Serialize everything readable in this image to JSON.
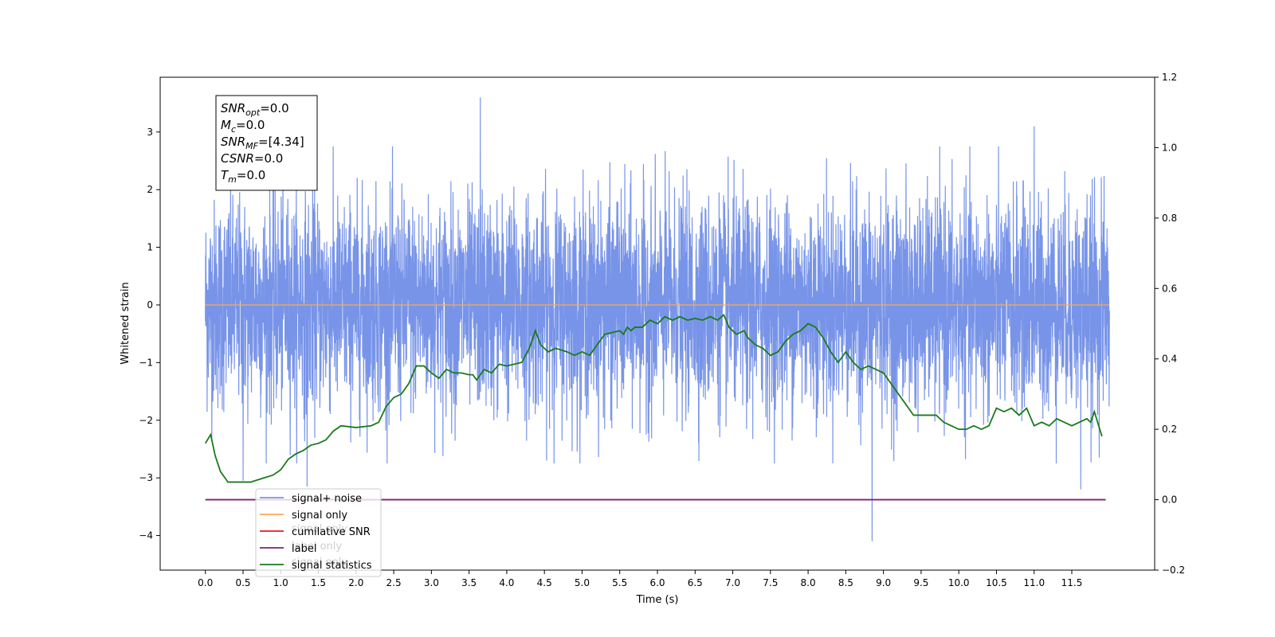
{
  "chart_data": {
    "type": "line",
    "xlabel": "Time (s)",
    "ylabel": "Whitened strain",
    "xlim": [
      -0.6,
      12.6
    ],
    "ylim": [
      -4.6,
      3.95
    ],
    "y2lim": [
      -0.2,
      1.2
    ],
    "x_ticks": [
      0.0,
      0.5,
      1.0,
      1.5,
      2.0,
      2.5,
      3.0,
      3.5,
      4.0,
      4.5,
      5.0,
      5.5,
      6.0,
      6.5,
      7.0,
      7.5,
      8.0,
      8.5,
      9.0,
      9.5,
      10.0,
      10.5,
      11.0,
      11.5
    ],
    "x_tick_labels": [
      "0.0",
      "0.5",
      "1.0",
      "1.5",
      "2.0",
      "2.5",
      "3.0",
      "3.5",
      "4.0",
      "4.5",
      "5.0",
      "5.5",
      "6.0",
      "6.5",
      "7.0",
      "7.5",
      "8.0",
      "8.5",
      "9.0",
      "9.5",
      "10.0",
      "10.5",
      "11.0",
      "11.5"
    ],
    "y_ticks": [
      3,
      2,
      1,
      0,
      -1,
      -2,
      -3,
      -4
    ],
    "y_tick_labels": [
      "3",
      "2",
      "1",
      "0",
      "−1",
      "−2",
      "−3",
      "−4"
    ],
    "y2_ticks": [
      1.2,
      1.0,
      0.8,
      0.6,
      0.4,
      0.2,
      0.0,
      -0.2
    ],
    "y2_tick_labels": [
      "1.2",
      "1.0",
      "0.8",
      "0.6",
      "0.4",
      "0.2",
      "0.0",
      "−0.2"
    ],
    "legend_position": "lower-left",
    "grid": false,
    "series": [
      {
        "name": "signal+ noise",
        "color": "#7894e8",
        "axis": "left",
        "x_range": [
          0.0,
          12.0
        ],
        "noise_sigma": 0.9,
        "extreme_points": [
          {
            "x": 3.65,
            "y": 3.6
          },
          {
            "x": 0.5,
            "y": -3.05
          },
          {
            "x": 1.35,
            "y": -3.15
          },
          {
            "x": 8.85,
            "y": -4.1
          },
          {
            "x": 11.62,
            "y": -3.2
          },
          {
            "x": 11.0,
            "y": 3.1
          }
        ]
      },
      {
        "name": "signal only",
        "color": "#ffa94d",
        "axis": "left",
        "x": [
          0.0,
          12.0
        ],
        "y": [
          0.0,
          0.0
        ]
      },
      {
        "name": "cumilative SNR",
        "color": "#e41a1c",
        "axis": "left",
        "x": [],
        "y": []
      },
      {
        "name": "label",
        "color": "#7b1f7a",
        "axis": "right",
        "x": [
          0.0,
          11.95
        ],
        "y": [
          0.0,
          0.0
        ]
      },
      {
        "name": "signal statistics",
        "color": "#1a7a1a",
        "axis": "right",
        "x": [
          0.0,
          0.07,
          0.13,
          0.2,
          0.3,
          0.45,
          0.6,
          0.75,
          0.9,
          1.0,
          1.1,
          1.2,
          1.3,
          1.4,
          1.5,
          1.6,
          1.7,
          1.8,
          2.0,
          2.2,
          2.3,
          2.4,
          2.5,
          2.6,
          2.7,
          2.8,
          2.9,
          3.0,
          3.1,
          3.2,
          3.3,
          3.4,
          3.5,
          3.55,
          3.6,
          3.7,
          3.8,
          3.9,
          4.0,
          4.1,
          4.2,
          4.3,
          4.38,
          4.45,
          4.55,
          4.65,
          4.8,
          4.9,
          5.0,
          5.1,
          5.2,
          5.3,
          5.4,
          5.5,
          5.55,
          5.6,
          5.65,
          5.7,
          5.8,
          5.9,
          6.0,
          6.1,
          6.2,
          6.3,
          6.4,
          6.5,
          6.6,
          6.7,
          6.8,
          6.88,
          6.95,
          7.05,
          7.15,
          7.2,
          7.3,
          7.4,
          7.5,
          7.6,
          7.7,
          7.8,
          7.9,
          8.0,
          8.1,
          8.2,
          8.3,
          8.4,
          8.5,
          8.6,
          8.7,
          8.8,
          8.9,
          9.0,
          9.1,
          9.2,
          9.3,
          9.4,
          9.5,
          9.6,
          9.7,
          9.8,
          9.9,
          10.0,
          10.1,
          10.2,
          10.3,
          10.4,
          10.5,
          10.6,
          10.7,
          10.8,
          10.9,
          11.0,
          11.1,
          11.2,
          11.3,
          11.4,
          11.5,
          11.6,
          11.7,
          11.75,
          11.8,
          11.9
        ],
        "y": [
          0.16,
          0.185,
          0.125,
          0.08,
          0.05,
          0.05,
          0.05,
          0.06,
          0.07,
          0.085,
          0.115,
          0.13,
          0.14,
          0.155,
          0.16,
          0.17,
          0.195,
          0.21,
          0.205,
          0.21,
          0.22,
          0.265,
          0.29,
          0.3,
          0.33,
          0.38,
          0.38,
          0.36,
          0.345,
          0.37,
          0.36,
          0.36,
          0.355,
          0.355,
          0.34,
          0.37,
          0.36,
          0.385,
          0.38,
          0.385,
          0.39,
          0.43,
          0.48,
          0.44,
          0.42,
          0.43,
          0.42,
          0.41,
          0.42,
          0.41,
          0.44,
          0.47,
          0.475,
          0.48,
          0.47,
          0.49,
          0.48,
          0.49,
          0.49,
          0.51,
          0.5,
          0.52,
          0.51,
          0.52,
          0.51,
          0.515,
          0.51,
          0.52,
          0.51,
          0.525,
          0.49,
          0.47,
          0.48,
          0.46,
          0.44,
          0.43,
          0.41,
          0.42,
          0.45,
          0.47,
          0.48,
          0.5,
          0.49,
          0.46,
          0.42,
          0.39,
          0.42,
          0.39,
          0.37,
          0.38,
          0.37,
          0.36,
          0.33,
          0.3,
          0.27,
          0.24,
          0.24,
          0.24,
          0.24,
          0.22,
          0.21,
          0.2,
          0.2,
          0.21,
          0.2,
          0.21,
          0.26,
          0.25,
          0.26,
          0.24,
          0.26,
          0.21,
          0.22,
          0.21,
          0.23,
          0.22,
          0.21,
          0.22,
          0.23,
          0.22,
          0.25,
          0.18
        ]
      }
    ],
    "annotation_box": {
      "lines": [
        {
          "symbol": "SNR",
          "sub": "opt",
          "value": "=0.0"
        },
        {
          "symbol": "M",
          "sub": "c",
          "value": "=0.0"
        },
        {
          "symbol": "SNR",
          "sub": "MF",
          "value": "=[4.34]"
        },
        {
          "symbol": "CSNR",
          "sub": "",
          "value": "=0.0"
        },
        {
          "symbol": "T",
          "sub": "m",
          "value": "=0.0"
        }
      ]
    },
    "ghost_labels": [
      "signal only",
      "label only",
      "signal only"
    ]
  }
}
